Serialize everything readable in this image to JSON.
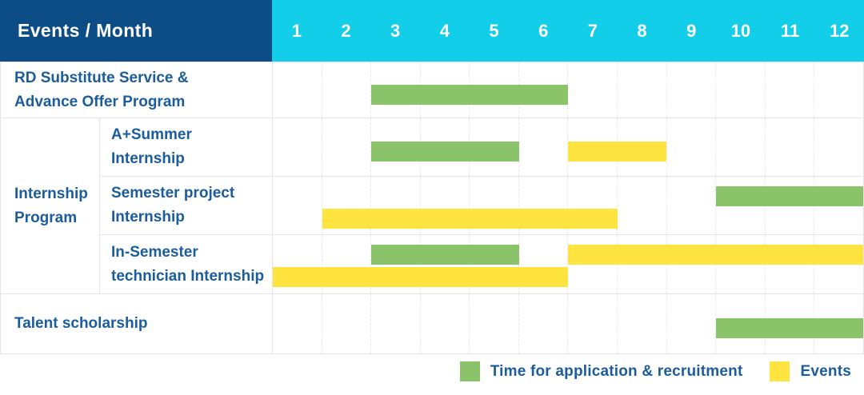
{
  "header": {
    "title": "Events / Month"
  },
  "months": [
    "1",
    "2",
    "3",
    "4",
    "5",
    "6",
    "7",
    "8",
    "9",
    "10",
    "11",
    "12"
  ],
  "colors": {
    "header_bg": "#0D4D86",
    "months_bg": "#12CEE8",
    "green": "#8AC369",
    "yellow": "#FFE33E",
    "label_text": "#1B5C9D",
    "cell_border": "#E4E4E4",
    "gridline": "#E9E9E9"
  },
  "group": {
    "label_lines": [
      "Internship",
      "Program"
    ]
  },
  "legend": {
    "items": [
      {
        "key": "recruitment",
        "label": "Time for application & recruitment",
        "color": "#8AC369"
      },
      {
        "key": "events",
        "label": "Events",
        "color": "#FFE33E"
      }
    ]
  },
  "chart_data": {
    "type": "gantt",
    "title": "Events / Month",
    "x_axis": {
      "label": "Month",
      "ticks": [
        1,
        2,
        3,
        4,
        5,
        6,
        7,
        8,
        9,
        10,
        11,
        12
      ],
      "range": [
        1,
        12
      ]
    },
    "series_legend": {
      "recruitment": "Time for application & recruitment",
      "events": "Events"
    },
    "rows": [
      {
        "event": "RD Substitute Service & Advance Offer Program",
        "label_lines": [
          "RD Substitute Service &",
          "Advance Offer Program"
        ],
        "group": null,
        "bars": [
          {
            "series": "recruitment",
            "start_month": 3,
            "end_month": 6,
            "lane": "single"
          }
        ]
      },
      {
        "event": "A+Summer Internship",
        "label_lines": [
          "A+Summer",
          "Internship"
        ],
        "group": "Internship Program",
        "bars": [
          {
            "series": "recruitment",
            "start_month": 3,
            "end_month": 5,
            "lane": "single"
          },
          {
            "series": "events",
            "start_month": 7,
            "end_month": 8,
            "lane": "single"
          }
        ]
      },
      {
        "event": "Semester project Internship",
        "label_lines": [
          "Semester project",
          "Internship"
        ],
        "group": "Internship Program",
        "bars": [
          {
            "series": "recruitment",
            "start_month": 10,
            "end_month": 12,
            "lane": "top"
          },
          {
            "series": "events",
            "start_month": 2,
            "end_month": 7,
            "lane": "bottom"
          }
        ]
      },
      {
        "event": "In-Semester technician Internship",
        "label_lines": [
          "In-Semester",
          "technician Internship"
        ],
        "group": "Internship Program",
        "bars": [
          {
            "series": "recruitment",
            "start_month": 3,
            "end_month": 5,
            "lane": "top"
          },
          {
            "series": "events",
            "start_month": 7,
            "end_month": 12,
            "lane": "top"
          },
          {
            "series": "events",
            "start_month": 1,
            "end_month": 6,
            "lane": "bottom"
          }
        ]
      },
      {
        "event": "Talent scholarship",
        "label_lines": [
          "Talent scholarship"
        ],
        "group": null,
        "bars": [
          {
            "series": "recruitment",
            "start_month": 10,
            "end_month": 12,
            "lane": "single"
          }
        ]
      }
    ]
  }
}
